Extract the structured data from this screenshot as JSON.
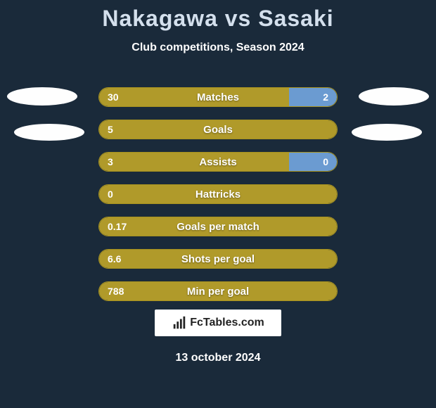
{
  "title": "Nakagawa vs Sasaki",
  "subtitle": "Club competitions, Season 2024",
  "colors": {
    "background": "#1a2a3a",
    "bar_left": "#b09a2a",
    "bar_right": "#6b9bd1",
    "bar_border": "#a8931f",
    "title": "#d4e0ed",
    "text": "#ffffff",
    "footer_bg": "#ffffff",
    "footer_text": "#222222"
  },
  "rows": [
    {
      "label": "Matches",
      "left": "30",
      "right": "2",
      "left_pct": 80,
      "right_pct": 20
    },
    {
      "label": "Goals",
      "left": "5",
      "right": "",
      "left_pct": 100,
      "right_pct": 0
    },
    {
      "label": "Assists",
      "left": "3",
      "right": "0",
      "left_pct": 80,
      "right_pct": 20
    },
    {
      "label": "Hattricks",
      "left": "0",
      "right": "",
      "left_pct": 100,
      "right_pct": 0
    },
    {
      "label": "Goals per match",
      "left": "0.17",
      "right": "",
      "left_pct": 100,
      "right_pct": 0
    },
    {
      "label": "Shots per goal",
      "left": "6.6",
      "right": "",
      "left_pct": 100,
      "right_pct": 0
    },
    {
      "label": "Min per goal",
      "left": "788",
      "right": "",
      "left_pct": 100,
      "right_pct": 0
    }
  ],
  "footer": {
    "brand": "FcTables.com",
    "date": "13 october 2024"
  }
}
